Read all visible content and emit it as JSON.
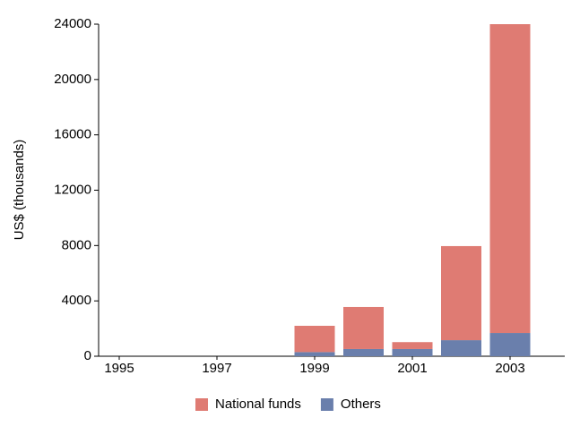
{
  "chart_data": {
    "type": "stacked-bar",
    "y_label": "US$ (thousands)",
    "categories": [
      "1995",
      null,
      "1997",
      null,
      "1999",
      null,
      "2001",
      null,
      "2003",
      null
    ],
    "series": [
      {
        "name": "Others",
        "color": "#6a7fac",
        "values": [
          null,
          null,
          null,
          null,
          300,
          520,
          520,
          1160,
          1680,
          null
        ]
      },
      {
        "name": "National funds",
        "color": "#df7b73",
        "values": [
          null,
          null,
          null,
          null,
          1900,
          3040,
          500,
          6800,
          22320,
          null
        ]
      }
    ],
    "ylim": [
      0,
      24000
    ],
    "yticks": [
      0,
      4000,
      8000,
      12000,
      16000,
      20000,
      24000
    ],
    "grid": false,
    "legend": "bottom"
  }
}
